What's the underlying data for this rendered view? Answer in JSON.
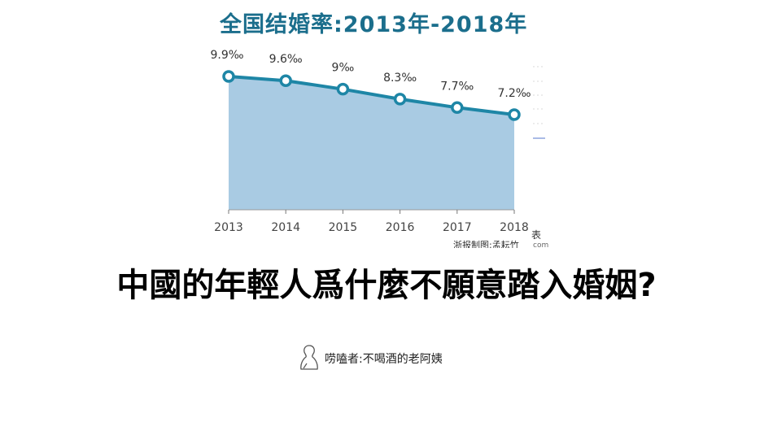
{
  "chart_data": {
    "type": "area",
    "title": "全国结婚率:2013年-2018年",
    "categories": [
      "2013",
      "2014",
      "2015",
      "2016",
      "2017",
      "2018"
    ],
    "values": [
      9.9,
      9.6,
      9.0,
      8.3,
      7.7,
      7.2
    ],
    "value_labels": [
      "9.9‰",
      "9.6‰",
      "9‰",
      "8.3‰",
      "7.7‰",
      "7.2‰"
    ],
    "unit": "‰",
    "xlabel": "",
    "ylabel": "",
    "grid": false,
    "legend": null,
    "line_color": "#1e86a6",
    "fill_color": "#a9cbe3",
    "credit": "浙报制图:孟耘竹",
    "watermark_fragment": "表",
    "watermark_fragment_2": "com"
  },
  "headline": "中國的年輕人爲什麼不願意踏入婚姻?",
  "author": {
    "icon": "person-outline-icon",
    "label": "唠嗑者:不喝酒的老阿姨"
  }
}
